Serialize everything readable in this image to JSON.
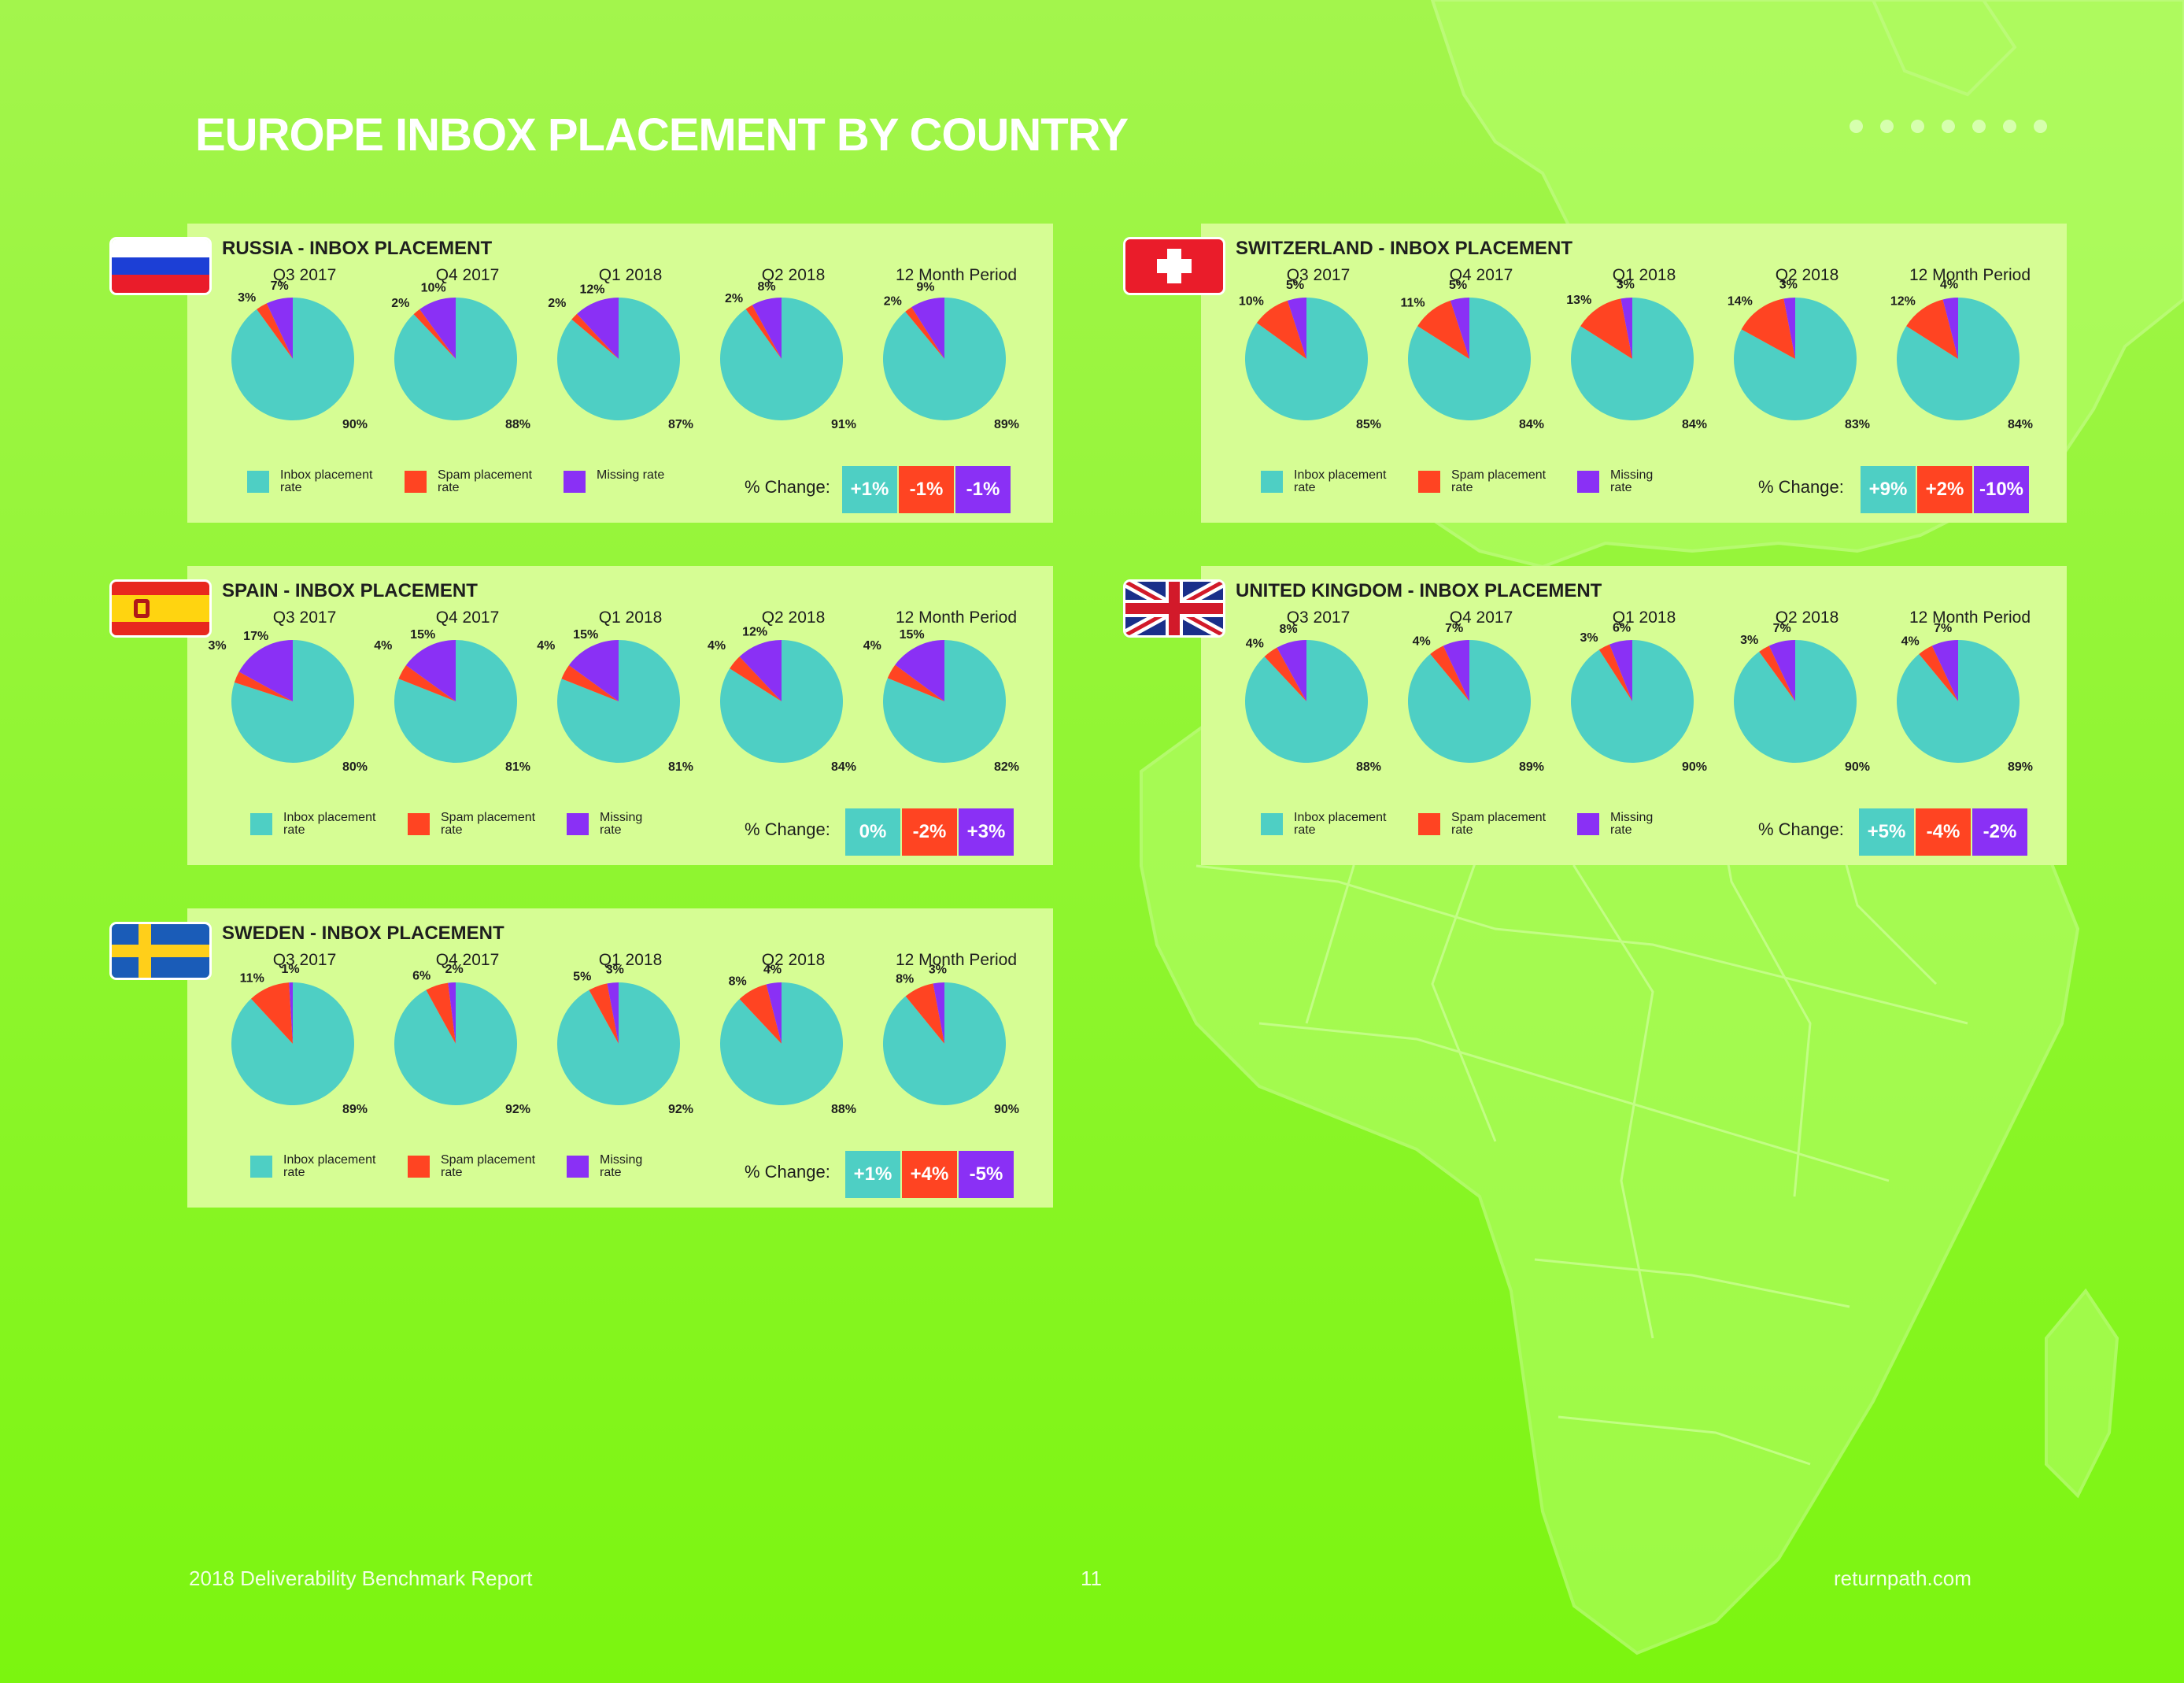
{
  "page": {
    "title": "EUROPE INBOX PLACEMENT BY COUNTRY",
    "footer_left": "2018 Deliverability Benchmark Report",
    "page_number": "11",
    "footer_right": "returnpath.com"
  },
  "colors": {
    "inbox": "#4ecfc4",
    "spam": "#ff4422",
    "missing": "#8a30f5",
    "panel_bg": "#d6fd94"
  },
  "legend": {
    "inbox": "Inbox placement rate",
    "spam": "Spam placement rate",
    "missing_long": "Missing rate",
    "missing_short": "Missing rate"
  },
  "change_label": "% Change:",
  "chart_data": [
    {
      "type": "pie",
      "title": "RUSSIA - INBOX PLACEMENT",
      "flag": "russia-flag",
      "categories": [
        "Inbox placement rate",
        "Spam placement rate",
        "Missing rate"
      ],
      "periods": [
        "Q3 2017",
        "Q4 2017",
        "Q1 2018",
        "Q2 2018",
        "12 Month Period"
      ],
      "series": [
        {
          "name": "Q3 2017",
          "values": [
            90,
            3,
            7
          ],
          "labels": [
            "90%",
            "3%",
            "7%"
          ]
        },
        {
          "name": "Q4 2017",
          "values": [
            88,
            2,
            10
          ],
          "labels": [
            "88%",
            "2%",
            "10%"
          ]
        },
        {
          "name": "Q1 2018",
          "values": [
            87,
            2,
            12
          ],
          "labels": [
            "87%",
            "2%",
            "12%"
          ]
        },
        {
          "name": "Q2 2018",
          "values": [
            91,
            2,
            8
          ],
          "labels": [
            "91%",
            "2%",
            "8%"
          ]
        },
        {
          "name": "12 Month Period",
          "values": [
            89,
            2,
            9
          ],
          "labels": [
            "89%",
            "2%",
            "9%"
          ]
        }
      ],
      "change": {
        "inbox": "+1%",
        "spam": "-1%",
        "missing": "-1%"
      }
    },
    {
      "type": "pie",
      "title": "SWITZERLAND - INBOX PLACEMENT",
      "flag": "switzerland-flag",
      "categories": [
        "Inbox placement rate",
        "Spam placement rate",
        "Missing rate"
      ],
      "periods": [
        "Q3 2017",
        "Q4 2017",
        "Q1 2018",
        "Q2 2018",
        "12 Month Period"
      ],
      "series": [
        {
          "name": "Q3 2017",
          "values": [
            85,
            10,
            5
          ],
          "labels": [
            "85%",
            "10%",
            "5%"
          ]
        },
        {
          "name": "Q4 2017",
          "values": [
            84,
            11,
            5
          ],
          "labels": [
            "84%",
            "11%",
            "5%"
          ]
        },
        {
          "name": "Q1 2018",
          "values": [
            84,
            13,
            3
          ],
          "labels": [
            "84%",
            "13%",
            "3%"
          ]
        },
        {
          "name": "Q2 2018",
          "values": [
            83,
            14,
            3
          ],
          "labels": [
            "83%",
            "14%",
            "3%"
          ]
        },
        {
          "name": "12 Month Period",
          "values": [
            84,
            12,
            4
          ],
          "labels": [
            "84%",
            "12%",
            "4%"
          ]
        }
      ],
      "change": {
        "inbox": "+9%",
        "spam": "+2%",
        "missing": "-10%"
      }
    },
    {
      "type": "pie",
      "title": "SPAIN - INBOX PLACEMENT",
      "flag": "spain-flag",
      "categories": [
        "Inbox placement rate",
        "Spam placement rate",
        "Missing rate"
      ],
      "periods": [
        "Q3 2017",
        "Q4 2017",
        "Q1 2018",
        "Q2 2018",
        "12 Month Period"
      ],
      "series": [
        {
          "name": "Q3 2017",
          "values": [
            80,
            3,
            17
          ],
          "labels": [
            "80%",
            "3%",
            "17%"
          ]
        },
        {
          "name": "Q4 2017",
          "values": [
            81,
            4,
            15
          ],
          "labels": [
            "81%",
            "4%",
            "15%"
          ]
        },
        {
          "name": "Q1 2018",
          "values": [
            81,
            4,
            15
          ],
          "labels": [
            "81%",
            "4%",
            "15%"
          ]
        },
        {
          "name": "Q2 2018",
          "values": [
            84,
            4,
            12
          ],
          "labels": [
            "84%",
            "4%",
            "12%"
          ]
        },
        {
          "name": "12 Month Period",
          "values": [
            82,
            4,
            15
          ],
          "labels": [
            "82%",
            "4%",
            "15%"
          ]
        }
      ],
      "change": {
        "inbox": "0%",
        "spam": "-2%",
        "missing": "+3%"
      }
    },
    {
      "type": "pie",
      "title": "UNITED KINGDOM - INBOX PLACEMENT",
      "flag": "united-kingdom-flag",
      "categories": [
        "Inbox placement rate",
        "Spam placement rate",
        "Missing rate"
      ],
      "periods": [
        "Q3 2017",
        "Q4 2017",
        "Q1 2018",
        "Q2 2018",
        "12 Month Period"
      ],
      "series": [
        {
          "name": "Q3 2017",
          "values": [
            88,
            4,
            8
          ],
          "labels": [
            "88%",
            "4%",
            "8%"
          ]
        },
        {
          "name": "Q4 2017",
          "values": [
            89,
            4,
            7
          ],
          "labels": [
            "89%",
            "4%",
            "7%"
          ]
        },
        {
          "name": "Q1 2018",
          "values": [
            90,
            3,
            6
          ],
          "labels": [
            "90%",
            "3%",
            "6%"
          ]
        },
        {
          "name": "Q2 2018",
          "values": [
            90,
            3,
            7
          ],
          "labels": [
            "90%",
            "3%",
            "7%"
          ]
        },
        {
          "name": "12 Month Period",
          "values": [
            89,
            4,
            7
          ],
          "labels": [
            "89%",
            "4%",
            "7%"
          ]
        }
      ],
      "change": {
        "inbox": "+5%",
        "spam": "-4%",
        "missing": "-2%"
      }
    },
    {
      "type": "pie",
      "title": "SWEDEN - INBOX PLACEMENT",
      "flag": "sweden-flag",
      "categories": [
        "Inbox placement rate",
        "Spam placement rate",
        "Missing rate"
      ],
      "periods": [
        "Q3 2017",
        "Q4 2017",
        "Q1 2018",
        "Q2 2018",
        "12 Month Period"
      ],
      "series": [
        {
          "name": "Q3 2017",
          "values": [
            89,
            11,
            1
          ],
          "labels": [
            "89%",
            "11%",
            "1%"
          ]
        },
        {
          "name": "Q4 2017",
          "values": [
            92,
            6,
            2
          ],
          "labels": [
            "92%",
            "6%",
            "2%"
          ]
        },
        {
          "name": "Q1 2018",
          "values": [
            92,
            5,
            3
          ],
          "labels": [
            "92%",
            "5%",
            "3%"
          ]
        },
        {
          "name": "Q2 2018",
          "values": [
            88,
            8,
            4
          ],
          "labels": [
            "88%",
            "8%",
            "4%"
          ]
        },
        {
          "name": "12 Month Period",
          "values": [
            90,
            8,
            3
          ],
          "labels": [
            "90%",
            "8%",
            "3%"
          ]
        }
      ],
      "change": {
        "inbox": "+1%",
        "spam": "+4%",
        "missing": "-5%"
      }
    }
  ]
}
